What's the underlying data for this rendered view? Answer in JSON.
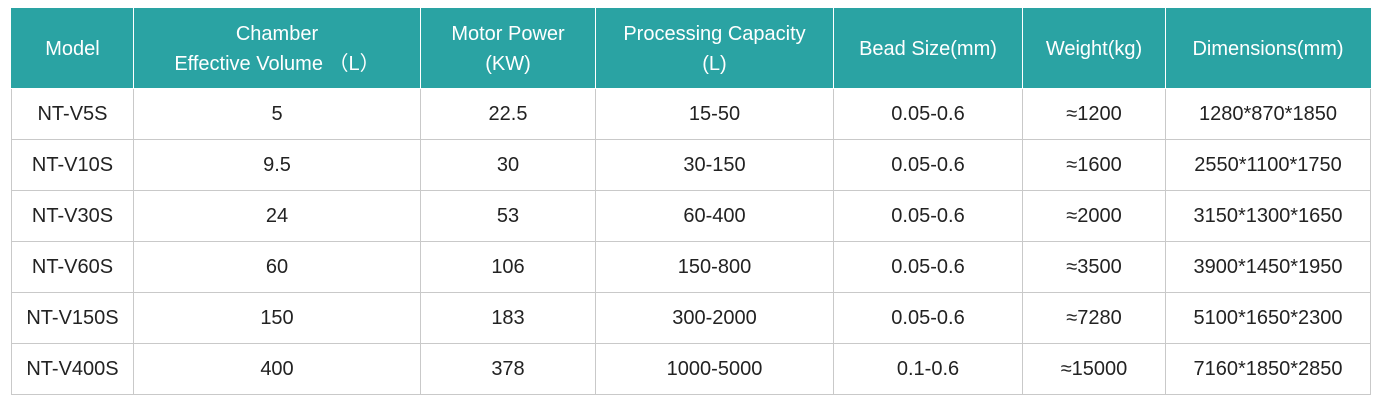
{
  "table": {
    "headers": [
      {
        "lines": [
          "Model"
        ]
      },
      {
        "lines": [
          "Chamber",
          "Effective Volume （L）"
        ]
      },
      {
        "lines": [
          "Motor Power",
          "(KW)"
        ]
      },
      {
        "lines": [
          "Processing Capacity",
          "(L)"
        ]
      },
      {
        "lines": [
          "Bead Size(mm)"
        ]
      },
      {
        "lines": [
          "Weight(kg)"
        ]
      },
      {
        "lines": [
          "Dimensions(mm)"
        ]
      }
    ],
    "rows": [
      [
        "NT-V5S",
        "5",
        "22.5",
        "15-50",
        "0.05-0.6",
        "≈1200",
        "1280*870*1850"
      ],
      [
        "NT-V10S",
        "9.5",
        "30",
        "30-150",
        "0.05-0.6",
        "≈1600",
        "2550*1100*1750"
      ],
      [
        "NT-V30S",
        "24",
        "53",
        "60-400",
        "0.05-0.6",
        "≈2000",
        "3150*1300*1650"
      ],
      [
        "NT-V60S",
        "60",
        "106",
        "150-800",
        "0.05-0.6",
        "≈3500",
        "3900*1450*1950"
      ],
      [
        "NT-V150S",
        "150",
        "183",
        "300-2000",
        "0.05-0.6",
        "≈7280",
        "5100*1650*2300"
      ],
      [
        "NT-V400S",
        "400",
        "378",
        "1000-5000",
        "0.1-0.6",
        "≈15000",
        "7160*1850*2850"
      ]
    ]
  },
  "colors": {
    "header_bg": "#2aa3a3",
    "header_text": "#ffffff",
    "grid": "#c9c9c9",
    "cell_text": "#222222"
  }
}
